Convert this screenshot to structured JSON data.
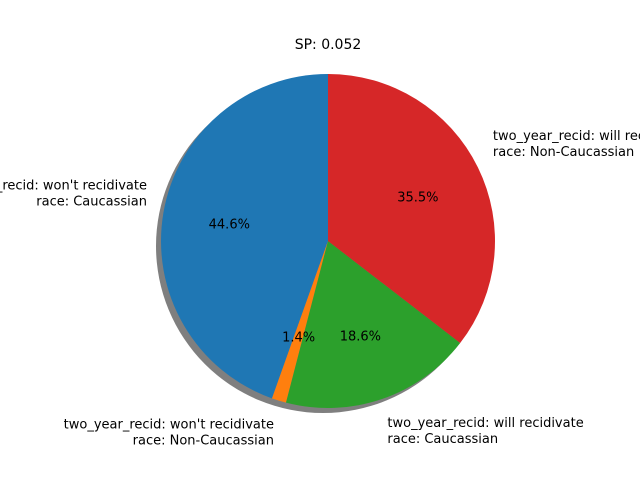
{
  "chart_data": {
    "type": "pie",
    "title": "SP: 0.052",
    "start_angle_deg": 90,
    "direction": "counterclockwise",
    "shadow": true,
    "slices": [
      {
        "lines": [
          "two_year_recid: won't recidivate",
          "race: Caucassian"
        ],
        "value": 44.6,
        "label": "44.6%",
        "color": "#1f77b4"
      },
      {
        "lines": [
          "two_year_recid: won't recidivate",
          "race: Non-Caucassian"
        ],
        "value": 1.4,
        "label": "1.4%",
        "color": "#ff7f0e"
      },
      {
        "lines": [
          "two_year_recid: will recidivate",
          "race: Caucassian"
        ],
        "value": 18.6,
        "label": "18.6%",
        "color": "#2ca02c"
      },
      {
        "lines": [
          "two_year_recid: will recidivate",
          "race: Non-Caucassian"
        ],
        "value": 35.5,
        "label": "35.5%",
        "color": "#d62728"
      }
    ]
  }
}
